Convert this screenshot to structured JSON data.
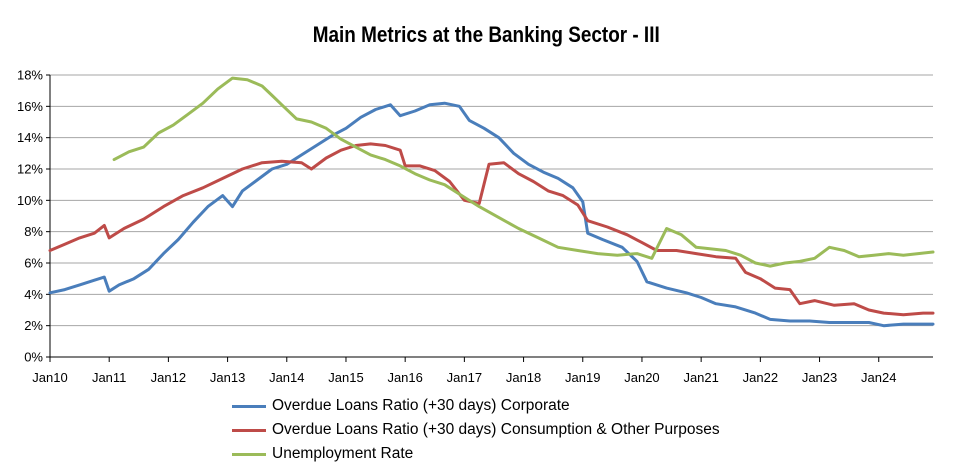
{
  "chart_data": {
    "type": "line",
    "title": "Main Metrics at the Banking Sector - III",
    "xlabel": "",
    "ylabel": "",
    "y_unit": "%",
    "ylim": [
      0,
      18
    ],
    "y_ticks": [
      0,
      2,
      4,
      6,
      8,
      10,
      12,
      14,
      16,
      18
    ],
    "x_range": [
      "2010-01",
      "2024-12"
    ],
    "x_tick_labels": [
      "Jan10",
      "Jan11",
      "Jan12",
      "Jan13",
      "Jan14",
      "Jan15",
      "Jan16",
      "Jan17",
      "Jan18",
      "Jan19",
      "Jan20",
      "Jan21",
      "Jan22",
      "Jan23",
      "Jan24"
    ],
    "grid": "horizontal",
    "legend_position": "bottom",
    "series": [
      {
        "name": "Overdue Loans Ratio (+30 days) Corporate",
        "color": "#4a7ebb",
        "points": [
          [
            "2010-01",
            4.1
          ],
          [
            "2010-04",
            4.3
          ],
          [
            "2010-07",
            4.6
          ],
          [
            "2010-10",
            4.9
          ],
          [
            "2010-12",
            5.1
          ],
          [
            "2011-01",
            4.2
          ],
          [
            "2011-03",
            4.6
          ],
          [
            "2011-06",
            5.0
          ],
          [
            "2011-09",
            5.6
          ],
          [
            "2011-12",
            6.6
          ],
          [
            "2012-03",
            7.5
          ],
          [
            "2012-06",
            8.6
          ],
          [
            "2012-09",
            9.6
          ],
          [
            "2012-12",
            10.3
          ],
          [
            "2013-02",
            9.6
          ],
          [
            "2013-04",
            10.6
          ],
          [
            "2013-07",
            11.3
          ],
          [
            "2013-10",
            12.0
          ],
          [
            "2014-01",
            12.3
          ],
          [
            "2014-04",
            12.9
          ],
          [
            "2014-07",
            13.5
          ],
          [
            "2014-10",
            14.1
          ],
          [
            "2015-01",
            14.6
          ],
          [
            "2015-04",
            15.3
          ],
          [
            "2015-07",
            15.8
          ],
          [
            "2015-10",
            16.1
          ],
          [
            "2015-12",
            15.4
          ],
          [
            "2016-03",
            15.7
          ],
          [
            "2016-06",
            16.1
          ],
          [
            "2016-09",
            16.2
          ],
          [
            "2016-12",
            16.0
          ],
          [
            "2017-02",
            15.1
          ],
          [
            "2017-05",
            14.6
          ],
          [
            "2017-08",
            14.0
          ],
          [
            "2017-11",
            13.0
          ],
          [
            "2018-02",
            12.3
          ],
          [
            "2018-05",
            11.8
          ],
          [
            "2018-08",
            11.4
          ],
          [
            "2018-11",
            10.8
          ],
          [
            "2019-01",
            9.9
          ],
          [
            "2019-02",
            7.9
          ],
          [
            "2019-05",
            7.5
          ],
          [
            "2019-09",
            7.0
          ],
          [
            "2019-12",
            6.1
          ],
          [
            "2020-02",
            4.8
          ],
          [
            "2020-06",
            4.4
          ],
          [
            "2020-10",
            4.1
          ],
          [
            "2021-01",
            3.8
          ],
          [
            "2021-04",
            3.4
          ],
          [
            "2021-08",
            3.2
          ],
          [
            "2021-12",
            2.8
          ],
          [
            "2022-03",
            2.4
          ],
          [
            "2022-07",
            2.3
          ],
          [
            "2022-11",
            2.3
          ],
          [
            "2023-03",
            2.2
          ],
          [
            "2023-07",
            2.2
          ],
          [
            "2023-11",
            2.2
          ],
          [
            "2024-02",
            2.0
          ],
          [
            "2024-06",
            2.1
          ],
          [
            "2024-10",
            2.1
          ],
          [
            "2024-12",
            2.1
          ]
        ]
      },
      {
        "name": "Overdue Loans Ratio (+30 days) Consumption & Other Purposes",
        "color": "#be4b48",
        "points": [
          [
            "2010-01",
            6.8
          ],
          [
            "2010-04",
            7.2
          ],
          [
            "2010-07",
            7.6
          ],
          [
            "2010-10",
            7.9
          ],
          [
            "2010-12",
            8.4
          ],
          [
            "2011-01",
            7.6
          ],
          [
            "2011-04",
            8.2
          ],
          [
            "2011-08",
            8.8
          ],
          [
            "2011-12",
            9.6
          ],
          [
            "2012-04",
            10.3
          ],
          [
            "2012-08",
            10.8
          ],
          [
            "2012-12",
            11.4
          ],
          [
            "2013-04",
            12.0
          ],
          [
            "2013-08",
            12.4
          ],
          [
            "2013-12",
            12.5
          ],
          [
            "2014-04",
            12.4
          ],
          [
            "2014-06",
            12.0
          ],
          [
            "2014-09",
            12.7
          ],
          [
            "2014-12",
            13.2
          ],
          [
            "2015-03",
            13.5
          ],
          [
            "2015-06",
            13.6
          ],
          [
            "2015-09",
            13.5
          ],
          [
            "2015-12",
            13.2
          ],
          [
            "2016-01",
            12.2
          ],
          [
            "2016-04",
            12.2
          ],
          [
            "2016-07",
            11.9
          ],
          [
            "2016-10",
            11.2
          ],
          [
            "2017-01",
            10.0
          ],
          [
            "2017-04",
            9.8
          ],
          [
            "2017-06",
            12.3
          ],
          [
            "2017-09",
            12.4
          ],
          [
            "2017-12",
            11.7
          ],
          [
            "2018-03",
            11.2
          ],
          [
            "2018-06",
            10.6
          ],
          [
            "2018-09",
            10.3
          ],
          [
            "2018-12",
            9.7
          ],
          [
            "2019-02",
            8.7
          ],
          [
            "2019-06",
            8.3
          ],
          [
            "2019-10",
            7.8
          ],
          [
            "2020-01",
            7.3
          ],
          [
            "2020-04",
            6.8
          ],
          [
            "2020-08",
            6.8
          ],
          [
            "2020-12",
            6.6
          ],
          [
            "2021-04",
            6.4
          ],
          [
            "2021-08",
            6.3
          ],
          [
            "2021-10",
            5.4
          ],
          [
            "2022-01",
            5.0
          ],
          [
            "2022-04",
            4.4
          ],
          [
            "2022-07",
            4.3
          ],
          [
            "2022-09",
            3.4
          ],
          [
            "2022-12",
            3.6
          ],
          [
            "2023-04",
            3.3
          ],
          [
            "2023-08",
            3.4
          ],
          [
            "2023-11",
            3.0
          ],
          [
            "2024-02",
            2.8
          ],
          [
            "2024-06",
            2.7
          ],
          [
            "2024-10",
            2.8
          ],
          [
            "2024-12",
            2.8
          ]
        ]
      },
      {
        "name": "Unemployment Rate",
        "color": "#9bbb59",
        "points": [
          [
            "2011-02",
            12.6
          ],
          [
            "2011-05",
            13.1
          ],
          [
            "2011-08",
            13.4
          ],
          [
            "2011-11",
            14.3
          ],
          [
            "2012-02",
            14.8
          ],
          [
            "2012-05",
            15.5
          ],
          [
            "2012-08",
            16.2
          ],
          [
            "2012-11",
            17.1
          ],
          [
            "2013-02",
            17.8
          ],
          [
            "2013-05",
            17.7
          ],
          [
            "2013-08",
            17.3
          ],
          [
            "2013-10",
            16.7
          ],
          [
            "2013-12",
            16.1
          ],
          [
            "2014-03",
            15.2
          ],
          [
            "2014-06",
            15.0
          ],
          [
            "2014-09",
            14.6
          ],
          [
            "2014-12",
            13.9
          ],
          [
            "2015-03",
            13.4
          ],
          [
            "2015-06",
            12.9
          ],
          [
            "2015-09",
            12.6
          ],
          [
            "2015-12",
            12.2
          ],
          [
            "2016-03",
            11.7
          ],
          [
            "2016-06",
            11.3
          ],
          [
            "2016-09",
            11.0
          ],
          [
            "2016-12",
            10.4
          ],
          [
            "2017-04",
            9.6
          ],
          [
            "2017-08",
            8.9
          ],
          [
            "2017-12",
            8.2
          ],
          [
            "2018-04",
            7.6
          ],
          [
            "2018-08",
            7.0
          ],
          [
            "2018-12",
            6.8
          ],
          [
            "2019-04",
            6.6
          ],
          [
            "2019-08",
            6.5
          ],
          [
            "2019-12",
            6.6
          ],
          [
            "2020-03",
            6.3
          ],
          [
            "2020-06",
            8.2
          ],
          [
            "2020-09",
            7.8
          ],
          [
            "2020-12",
            7.0
          ],
          [
            "2021-03",
            6.9
          ],
          [
            "2021-06",
            6.8
          ],
          [
            "2021-09",
            6.5
          ],
          [
            "2021-12",
            6.0
          ],
          [
            "2022-03",
            5.8
          ],
          [
            "2022-06",
            6.0
          ],
          [
            "2022-09",
            6.1
          ],
          [
            "2022-12",
            6.3
          ],
          [
            "2023-03",
            7.0
          ],
          [
            "2023-06",
            6.8
          ],
          [
            "2023-09",
            6.4
          ],
          [
            "2023-12",
            6.5
          ],
          [
            "2024-03",
            6.6
          ],
          [
            "2024-06",
            6.5
          ],
          [
            "2024-09",
            6.6
          ],
          [
            "2024-12",
            6.7
          ]
        ]
      }
    ]
  }
}
